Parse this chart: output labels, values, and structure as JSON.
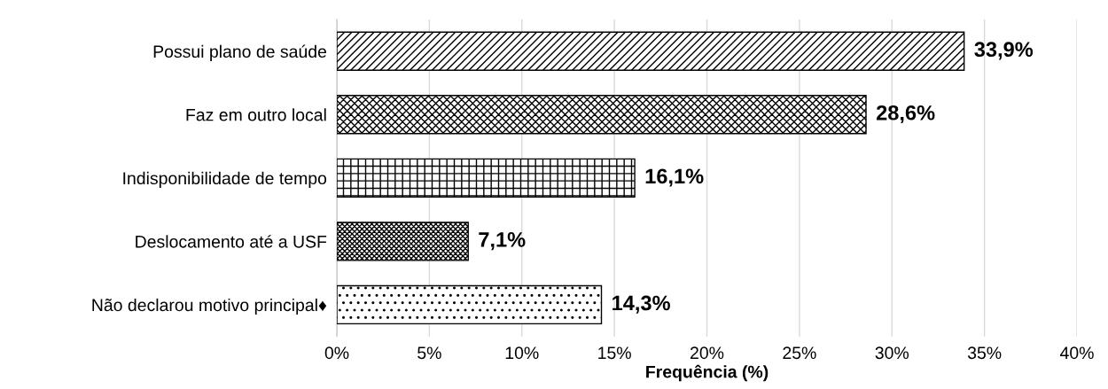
{
  "chart_data": {
    "type": "bar",
    "orientation": "horizontal",
    "xlabel": "Frequência (%)",
    "categories": [
      "Possui plano de saúde",
      "Faz em outro local",
      "Indisponibilidade de tempo",
      "Deslocamento até a USF",
      "Não declarou motivo principal♦"
    ],
    "values": [
      33.9,
      28.6,
      16.1,
      7.1,
      14.3
    ],
    "value_labels": [
      "33,9%",
      "28,6%",
      "16,1%",
      "7,1%",
      "14,3%"
    ],
    "xlim": [
      0,
      40
    ],
    "xticks": [
      {
        "value": 0,
        "label": "0%"
      },
      {
        "value": 5,
        "label": "5%"
      },
      {
        "value": 10,
        "label": "10%"
      },
      {
        "value": 15,
        "label": "15%"
      },
      {
        "value": 20,
        "label": "20%"
      },
      {
        "value": 25,
        "label": "25%"
      },
      {
        "value": 30,
        "label": "30%"
      },
      {
        "value": 35,
        "label": "35%"
      },
      {
        "value": 40,
        "label": "40%"
      }
    ],
    "grid": "x"
  }
}
